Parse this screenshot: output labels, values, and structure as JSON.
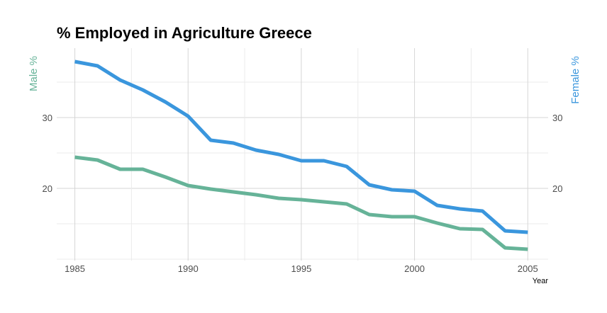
{
  "chart_data": {
    "type": "line",
    "title": "% Employed in Agriculture Greece",
    "xlabel": "Year",
    "ylabel_left": "Male %",
    "ylabel_right": "Female %",
    "x": [
      1985,
      1986,
      1987,
      1988,
      1989,
      1990,
      1991,
      1992,
      1993,
      1994,
      1995,
      1996,
      1997,
      1998,
      1999,
      2000,
      2001,
      2002,
      2003,
      2004,
      2005
    ],
    "x_ticks": [
      "1985",
      "1990",
      "1995",
      "2000",
      "2005"
    ],
    "y_ticks_left": [
      "20",
      "30"
    ],
    "y_ticks_right": [
      "20",
      "30"
    ],
    "xlim": [
      1984.2,
      2005.9
    ],
    "ylim": [
      9.8,
      39.8
    ],
    "grid": true,
    "series": [
      {
        "name": "Male %",
        "axis": "left",
        "color": "#66b398",
        "values": [
          24.4,
          24.0,
          22.7,
          22.7,
          21.6,
          20.4,
          19.9,
          19.5,
          19.1,
          18.6,
          18.4,
          18.1,
          17.8,
          16.3,
          16.0,
          16.0,
          15.1,
          14.3,
          14.2,
          11.6,
          11.4
        ]
      },
      {
        "name": "Female %",
        "axis": "right",
        "color": "#3a96dd",
        "values": [
          37.9,
          37.3,
          35.3,
          33.9,
          32.2,
          30.2,
          26.8,
          26.4,
          25.4,
          24.8,
          23.9,
          23.9,
          23.1,
          20.5,
          19.8,
          19.6,
          17.6,
          17.1,
          16.8,
          14.0,
          13.8
        ]
      }
    ]
  }
}
